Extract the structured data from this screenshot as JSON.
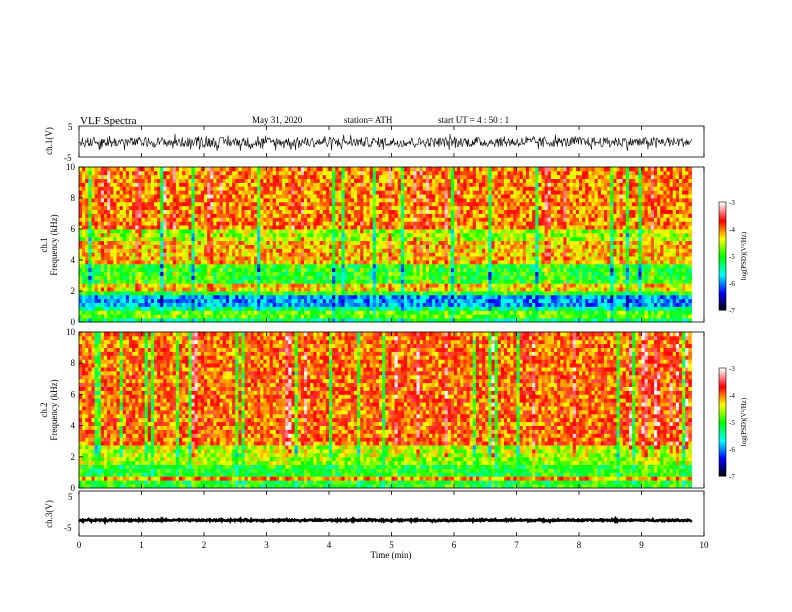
{
  "header": {
    "title": "VLF  Spectra",
    "date": "May 31, 2020",
    "station": "station= ATH",
    "start": "start  UT  =   4  : 50 : 1"
  },
  "chart_data": [
    {
      "type": "line",
      "name": "ch1-waveform",
      "ylabel": "ch.1(V)",
      "ylim": [
        -5,
        5
      ],
      "yticks": [
        "5",
        "-5"
      ],
      "xlim": [
        0,
        10
      ],
      "data_x_max": 9.8,
      "description_level": "noisy broadband signal roughly between -3 and +3 V"
    },
    {
      "type": "heatmap",
      "name": "ch1-spectrogram",
      "title": "ch.1",
      "ylabel": "Frequency (kHz)",
      "ylim": [
        0,
        10
      ],
      "yticks": [
        "0",
        "2",
        "4",
        "6",
        "8",
        "10"
      ],
      "xlim": [
        0,
        10
      ],
      "data_x_max": 9.8,
      "bands": [
        {
          "from": 0.0,
          "to": 0.3,
          "level": -5.3
        },
        {
          "from": 0.3,
          "to": 0.8,
          "level": -4.8
        },
        {
          "from": 0.8,
          "to": 1.0,
          "level": -5.4
        },
        {
          "from": 1.0,
          "to": 1.8,
          "level": -5.9
        },
        {
          "from": 1.8,
          "to": 2.1,
          "level": -5.0
        },
        {
          "from": 2.1,
          "to": 2.6,
          "level": -4.3
        },
        {
          "from": 2.6,
          "to": 3.8,
          "level": -5.0
        },
        {
          "from": 3.8,
          "to": 5.3,
          "level": -4.2
        },
        {
          "from": 5.3,
          "to": 6.0,
          "level": -4.6
        },
        {
          "from": 6.0,
          "to": 10.0,
          "level": -4.0
        }
      ],
      "colorbar": {
        "label": "log(PSD)(V²/Hz)",
        "ticks": [
          "-3",
          "-4",
          "-5",
          "-6",
          "-7"
        ],
        "range": [
          -7,
          -3
        ]
      }
    },
    {
      "type": "heatmap",
      "name": "ch2-spectrogram",
      "title": "ch.2",
      "ylabel": "Frequency (kHz)",
      "ylim": [
        0,
        10
      ],
      "yticks": [
        "0",
        "2",
        "4",
        "6",
        "8",
        "10"
      ],
      "xlim": [
        0,
        10
      ],
      "data_x_max": 9.8,
      "bands": [
        {
          "from": 0.0,
          "to": 0.5,
          "level": -5.0
        },
        {
          "from": 0.5,
          "to": 0.7,
          "level": -4.1
        },
        {
          "from": 0.7,
          "to": 1.5,
          "level": -5.0
        },
        {
          "from": 1.5,
          "to": 1.9,
          "level": -4.6
        },
        {
          "from": 1.9,
          "to": 2.1,
          "level": -4.0
        },
        {
          "from": 2.1,
          "to": 2.8,
          "level": -4.5
        },
        {
          "from": 2.8,
          "to": 10.0,
          "level": -3.9
        }
      ],
      "colorbar": {
        "label": "log(PSD)(V²/Hz)",
        "ticks": [
          "-3",
          "-4",
          "-5",
          "-6",
          "-7"
        ],
        "range": [
          -7,
          -3
        ]
      }
    },
    {
      "type": "line",
      "name": "ch3-waveform",
      "ylabel": "ch.3(V)",
      "ylim": [
        -5,
        5
      ],
      "yticks": [
        "5",
        "-5"
      ],
      "xlim": [
        0,
        10
      ],
      "data_x_max": 9.8,
      "description_level": "nearly flat trace around -1.5 V"
    }
  ],
  "xaxis": {
    "label": "Time  (min)",
    "ticks": [
      "0",
      "1",
      "2",
      "3",
      "4",
      "5",
      "6",
      "7",
      "8",
      "9",
      "10"
    ]
  },
  "colors": {
    "colormap": [
      "#000000",
      "#0000ff",
      "#00ffff",
      "#00ff00",
      "#ffff00",
      "#ff0000",
      "#ffffff"
    ],
    "dominant": "#ff2000",
    "line": "#000000"
  }
}
